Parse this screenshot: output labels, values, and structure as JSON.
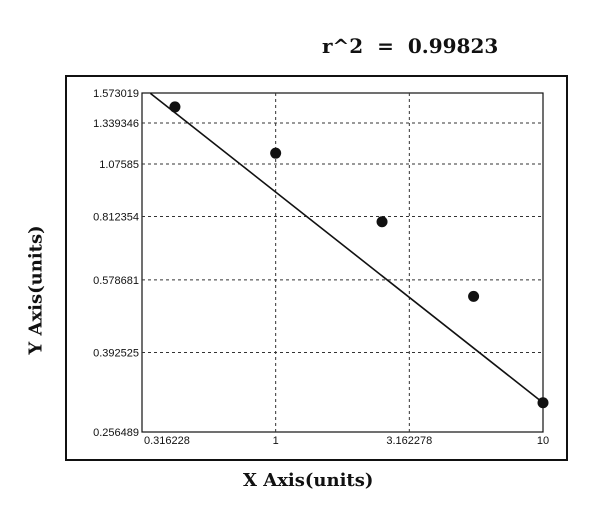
{
  "annotation": "r^2  =  0.99823",
  "chart_data": {
    "type": "scatter",
    "title": "",
    "xlabel": "X Axis(units)",
    "ylabel": "Y Axis(units)",
    "x_scale": "log",
    "y_scale": "log",
    "xlim": [
      0.316228,
      10
    ],
    "ylim": [
      0.256489,
      1.573019
    ],
    "x_ticks": [
      0.316228,
      1,
      3.162278,
      10
    ],
    "x_tick_labels": [
      "0.316228",
      "1",
      "3.162278",
      "10"
    ],
    "y_ticks": [
      0.256489,
      0.392525,
      0.578681,
      0.812354,
      1.07585,
      1.339346,
      1.573019
    ],
    "y_tick_labels": [
      "0.256489",
      "0.392525",
      "0.578681",
      "0.812354",
      "1.07585",
      "1.339346",
      "1.573019"
    ],
    "grid": true,
    "series": [
      {
        "points": [
          {
            "x": 0.42,
            "y": 1.46
          },
          {
            "x": 1.0,
            "y": 1.14
          },
          {
            "x": 2.5,
            "y": 0.79
          },
          {
            "x": 5.5,
            "y": 0.53
          },
          {
            "x": 10.0,
            "y": 0.3
          }
        ]
      }
    ],
    "fit_line": {
      "x": [
        0.34,
        10.0
      ],
      "y": [
        1.57,
        0.3
      ]
    },
    "colors": {
      "points": "#111111",
      "line": "#111111",
      "grid": "#333333"
    }
  }
}
